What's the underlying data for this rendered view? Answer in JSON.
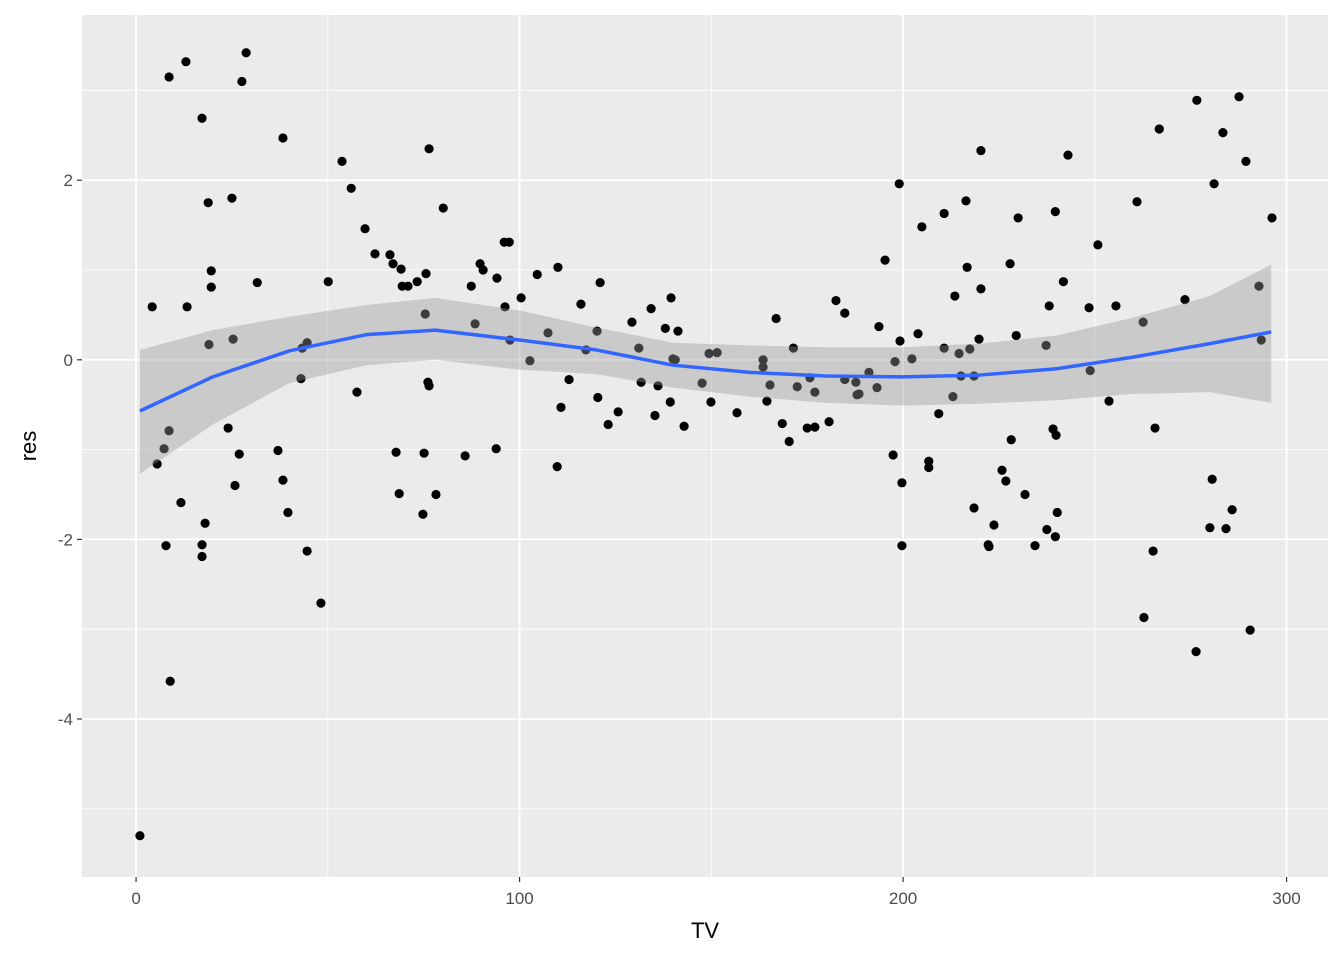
{
  "chart_data": {
    "type": "scatter",
    "x_label": "TV",
    "y_label": "res",
    "xlim": [
      -14.1,
      310.8
    ],
    "ylim": [
      -5.76,
      3.84
    ],
    "xticks": [
      0,
      100,
      200,
      300
    ],
    "yticks": [
      -4,
      -2,
      0,
      2
    ],
    "x_minor_grid": [
      50,
      150,
      250
    ],
    "y_minor_grid": [
      -5,
      -3,
      -1,
      1,
      3
    ],
    "grid": true,
    "point_color": "#000000",
    "x": [
      1.0,
      4.2,
      5.5,
      7.3,
      7.8,
      8.6,
      8.6,
      8.9,
      11.7,
      13.0,
      13.3,
      17.2,
      17.2,
      17.2,
      18.0,
      18.8,
      19.0,
      19.6,
      19.6,
      24.0,
      25.0,
      25.3,
      25.8,
      26.9,
      27.6,
      28.7,
      31.6,
      37.0,
      38.3,
      38.3,
      39.6,
      43.0,
      43.3,
      44.6,
      44.6,
      48.2,
      50.1,
      53.7,
      56.1,
      57.6,
      59.7,
      62.3,
      66.2,
      67.0,
      67.8,
      68.6,
      69.1,
      69.4,
      70.9,
      73.3,
      74.8,
      75.1,
      75.4,
      75.6,
      76.1,
      76.4,
      76.4,
      78.2,
      80.1,
      85.8,
      87.4,
      88.4,
      89.7,
      90.5,
      93.9,
      94.1,
      96.0,
      96.2,
      97.3,
      97.5,
      100.4,
      102.7,
      104.6,
      107.4,
      109.8,
      110.0,
      110.8,
      112.9,
      116.0,
      117.3,
      120.4,
      121.0,
      120.2,
      123.1,
      125.7,
      129.3,
      131.1,
      131.7,
      134.3,
      135.3,
      136.1,
      138.0,
      139.3,
      139.5,
      140.0,
      140.6,
      141.3,
      142.9,
      147.6,
      149.4,
      149.9,
      151.5,
      156.7,
      163.5,
      163.5,
      164.5,
      165.3,
      166.9,
      168.5,
      170.3,
      171.4,
      172.4,
      175.0,
      175.7,
      177.0,
      177.0,
      180.7,
      182.5,
      184.8,
      184.8,
      187.7,
      188.0,
      188.5,
      191.1,
      193.2,
      193.7,
      195.3,
      197.4,
      197.9,
      199.0,
      199.2,
      199.7,
      199.7,
      202.3,
      203.9,
      204.9,
      206.7,
      206.7,
      209.3,
      210.7,
      210.7,
      213.0,
      213.5,
      214.6,
      215.1,
      216.4,
      216.7,
      217.4,
      218.5,
      218.5,
      219.8,
      220.3,
      220.3,
      222.2,
      222.4,
      223.7,
      225.8,
      226.8,
      227.9,
      228.2,
      229.5,
      230.0,
      231.8,
      234.4,
      237.3,
      237.5,
      238.1,
      239.1,
      239.7,
      239.7,
      239.9,
      240.2,
      241.8,
      243.0,
      248.5,
      248.8,
      250.8,
      253.7,
      255.5,
      261.0,
      262.6,
      262.8,
      265.2,
      265.7,
      266.8,
      273.5,
      276.4,
      276.6,
      280.0,
      280.6,
      281.1,
      283.4,
      284.2,
      285.8,
      287.6,
      289.4,
      290.5,
      292.8,
      293.4,
      296.2
    ],
    "y": [
      -5.3,
      0.59,
      -1.16,
      -0.99,
      -2.07,
      -0.79,
      3.15,
      -3.58,
      -1.59,
      3.32,
      0.59,
      2.69,
      -2.06,
      -2.19,
      -1.82,
      1.75,
      0.17,
      0.81,
      0.99,
      -0.76,
      1.8,
      0.23,
      -1.4,
      -1.05,
      3.1,
      3.42,
      0.86,
      -1.01,
      2.47,
      -1.34,
      -1.7,
      -0.21,
      0.13,
      0.19,
      -2.13,
      -2.71,
      0.87,
      2.21,
      1.91,
      -0.36,
      1.46,
      1.18,
      1.17,
      1.07,
      -1.03,
      -1.49,
      1.01,
      0.82,
      0.82,
      0.87,
      -1.72,
      -1.04,
      0.51,
      0.96,
      -0.25,
      -0.29,
      2.35,
      -1.5,
      1.69,
      -1.07,
      0.82,
      0.4,
      1.07,
      1.0,
      -0.99,
      0.91,
      1.31,
      0.59,
      1.31,
      0.22,
      0.69,
      -0.01,
      0.95,
      0.3,
      -1.19,
      1.03,
      -0.53,
      -0.22,
      0.62,
      0.11,
      -0.42,
      0.86,
      0.32,
      -0.72,
      -0.58,
      0.42,
      0.13,
      -0.25,
      0.57,
      -0.62,
      -0.29,
      0.35,
      -0.47,
      0.69,
      0.01,
      0.0,
      0.32,
      -0.74,
      -0.26,
      0.07,
      -0.47,
      0.08,
      -0.59,
      0.0,
      -0.08,
      -0.46,
      -0.28,
      0.46,
      -0.71,
      -0.91,
      0.13,
      -0.3,
      -0.76,
      -0.2,
      -0.36,
      -0.75,
      -0.69,
      0.66,
      0.52,
      -0.22,
      -0.25,
      -0.39,
      -0.38,
      -0.14,
      -0.31,
      0.37,
      1.11,
      -1.06,
      -0.02,
      1.96,
      0.21,
      -1.37,
      -2.07,
      0.01,
      0.29,
      1.48,
      -1.13,
      -1.2,
      -0.6,
      1.63,
      0.13,
      -0.41,
      0.71,
      0.07,
      -0.18,
      1.77,
      1.03,
      0.12,
      -0.18,
      -1.65,
      0.23,
      2.33,
      0.79,
      -2.06,
      -2.08,
      -1.84,
      -1.23,
      -1.35,
      1.07,
      -0.89,
      0.27,
      1.58,
      -1.5,
      -2.07,
      0.16,
      -1.89,
      0.6,
      -0.77,
      -1.97,
      1.65,
      -0.84,
      -1.7,
      0.87,
      2.28,
      0.58,
      -0.12,
      1.28,
      -0.46,
      0.6,
      1.76,
      0.42,
      -2.87,
      -2.13,
      -0.76,
      2.57,
      0.67,
      -3.25,
      2.89,
      -1.87,
      -1.33,
      1.96,
      2.53,
      -1.88,
      -1.67,
      2.93,
      2.21,
      -3.01,
      0.82,
      0.22,
      1.58
    ],
    "smooth": {
      "color": "#3366ff",
      "band_color": "#999999",
      "x": [
        1,
        20,
        40,
        60,
        78,
        100,
        120,
        140,
        160,
        180,
        200,
        220,
        240,
        260,
        280,
        296
      ],
      "y": [
        -0.57,
        -0.19,
        0.1,
        0.28,
        0.33,
        0.22,
        0.11,
        -0.06,
        -0.14,
        -0.18,
        -0.19,
        -0.17,
        -0.1,
        0.03,
        0.18,
        0.31
      ],
      "lower": [
        -1.27,
        -0.72,
        -0.26,
        -0.06,
        0.0,
        -0.11,
        -0.16,
        -0.31,
        -0.41,
        -0.48,
        -0.51,
        -0.49,
        -0.45,
        -0.38,
        -0.36,
        -0.48
      ],
      "upper": [
        0.11,
        0.33,
        0.48,
        0.61,
        0.69,
        0.55,
        0.36,
        0.19,
        0.16,
        0.14,
        0.14,
        0.18,
        0.27,
        0.47,
        0.71,
        1.06
      ]
    }
  }
}
